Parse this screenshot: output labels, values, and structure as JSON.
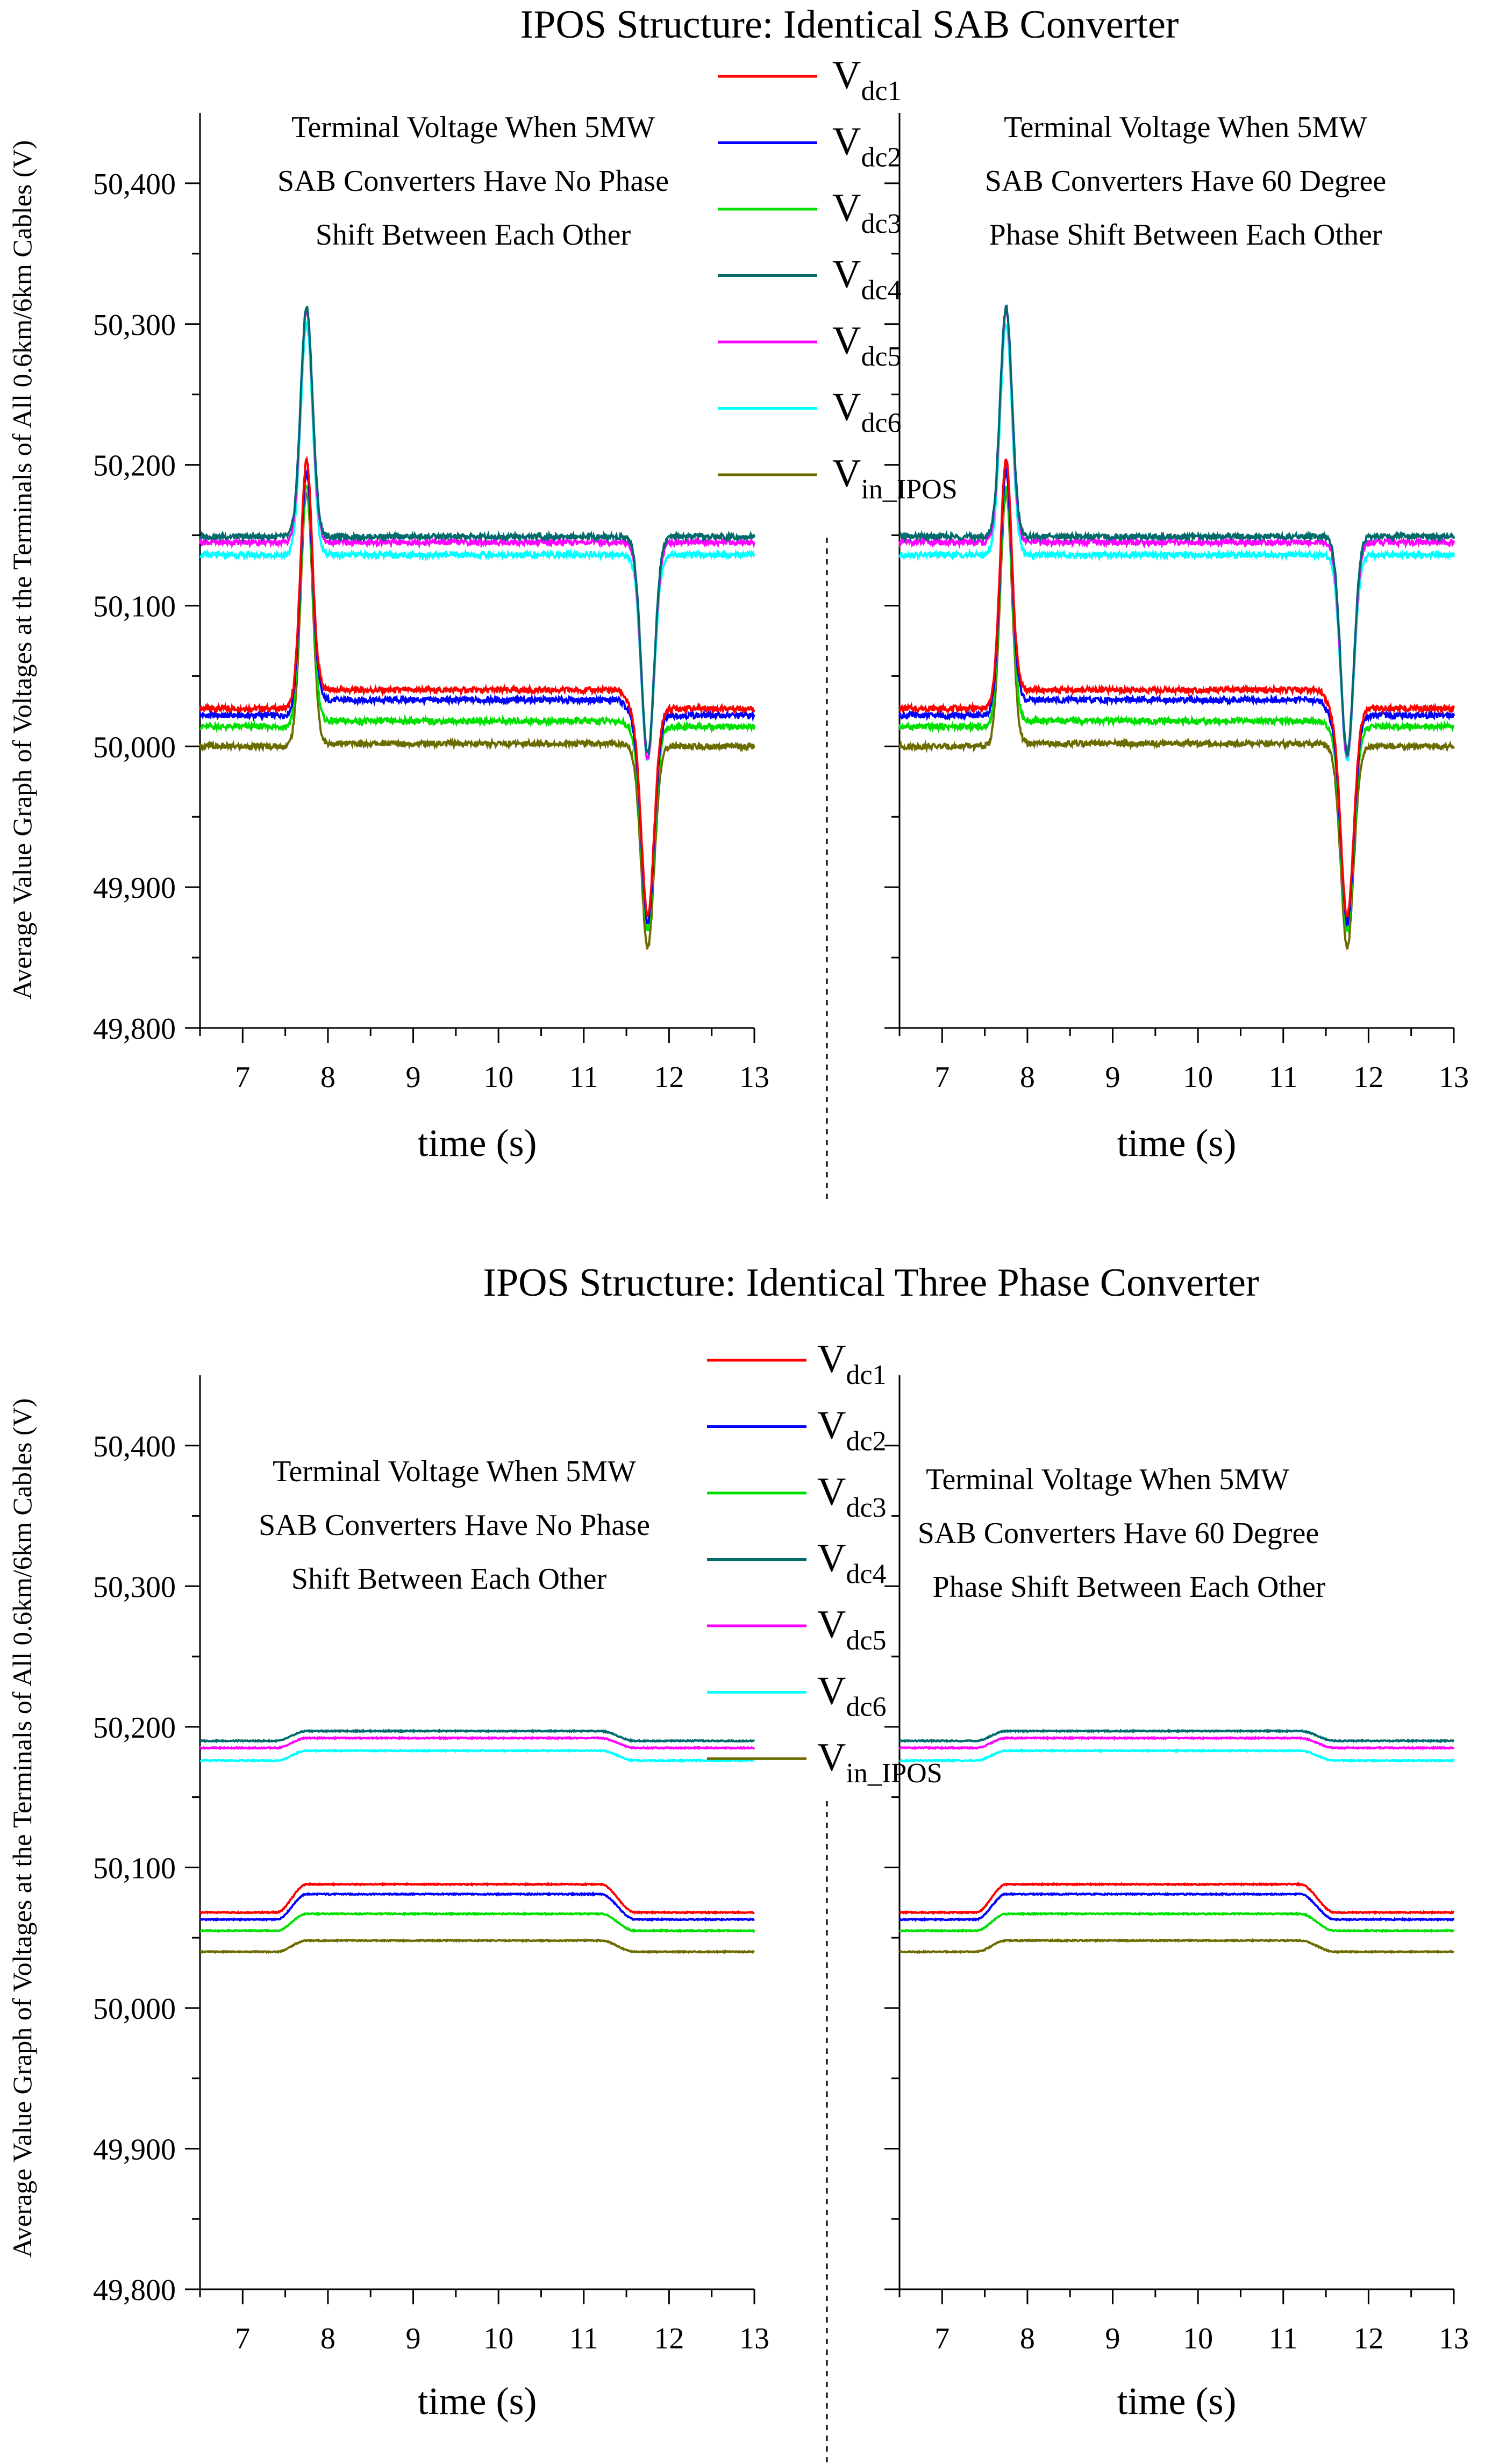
{
  "y_axis_label": "Average Value Graph of Voltages at the Terminals of All 0.6km/6km Cables (V)",
  "legend": [
    {
      "main": "V",
      "sub": "dc1",
      "color": "#ff0000"
    },
    {
      "main": "V",
      "sub": "dc2",
      "color": "#0000ff"
    },
    {
      "main": "V",
      "sub": "dc3",
      "color": "#00e000"
    },
    {
      "main": "V",
      "sub": "dc4",
      "color": "#006b6b"
    },
    {
      "main": "V",
      "sub": "dc5",
      "color": "#ff00ff"
    },
    {
      "main": "V",
      "sub": "dc6",
      "color": "#00ffff"
    },
    {
      "main": "V",
      "sub": "in_IPOS",
      "color": "#6b6b00"
    }
  ],
  "chart_data": [
    {
      "type": "line",
      "title": "IPOS Structure: Identical SAB Converter",
      "subtitle_left": [
        "Terminal Voltage When 5MW",
        "SAB Converters Have No Phase",
        "Shift Between Each Other"
      ],
      "subtitle_right": [
        "Terminal Voltage When 5MW",
        "SAB Converters Have 60 Degree",
        "Phase Shift Between Each Other"
      ],
      "xlabel": "time (s)",
      "ylabel": "Average Value Graph of Voltages at the Terminals of All 0.6km/6km Cables (V)",
      "xlim": [
        6.5,
        13
      ],
      "ylim": [
        49800,
        50450
      ],
      "xticks": [
        7,
        8,
        9,
        10,
        11,
        12,
        13
      ],
      "yticks": [
        49800,
        49900,
        50000,
        50100,
        50200,
        50300,
        50400
      ],
      "ytick_labels": [
        "49,800",
        "49,900",
        "50,000",
        "50,100",
        "50,200",
        "50,300",
        "50,400"
      ],
      "series": [
        {
          "name": "Vdc1",
          "baseline": 50027,
          "mid": 50040,
          "peak": 50203,
          "dip": 49880
        },
        {
          "name": "Vdc2",
          "baseline": 50022,
          "mid": 50033,
          "peak": 50195,
          "dip": 49875
        },
        {
          "name": "Vdc3",
          "baseline": 50014,
          "mid": 50018,
          "peak": 50185,
          "dip": 49870
        },
        {
          "name": "Vdc4",
          "baseline": 50149,
          "mid": 50149,
          "peak": 50312,
          "dip": 49995
        },
        {
          "name": "Vdc5",
          "baseline": 50145,
          "mid": 50145,
          "peak": 50310,
          "dip": 49992
        },
        {
          "name": "Vdc6",
          "baseline": 50136,
          "mid": 50136,
          "peak": 50300,
          "dip": 49990
        },
        {
          "name": "Vin_IPOS",
          "baseline": 50000,
          "mid": 50002,
          "peak": 50180,
          "dip": 49857
        }
      ],
      "events": {
        "pulse_up_time": 7.75,
        "pulse_down_time": 11.75
      }
    },
    {
      "type": "line",
      "title": "IPOS Structure: Identical Three Phase Converter",
      "subtitle_left": [
        "Terminal Voltage When 5MW",
        "SAB Converters Have No Phase",
        "Shift Between Each Other"
      ],
      "subtitle_right": [
        "Terminal Voltage When 5MW",
        "SAB Converters Have 60 Degree",
        "Phase Shift Between Each Other"
      ],
      "xlabel": "time (s)",
      "ylabel": "Average Value Graph of Voltages at the Terminals of All 0.6km/6km Cables (V)",
      "xlim": [
        6.5,
        13
      ],
      "ylim": [
        49800,
        50450
      ],
      "xticks": [
        7,
        8,
        9,
        10,
        11,
        12,
        13
      ],
      "yticks": [
        49800,
        49900,
        50000,
        50100,
        50200,
        50300,
        50400
      ],
      "ytick_labels": [
        "49,800",
        "49,900",
        "50,000",
        "50,100",
        "50,200",
        "50,300",
        "50,400"
      ],
      "series": [
        {
          "name": "Vdc1",
          "baseline": 50068,
          "mid": 50088
        },
        {
          "name": "Vdc2",
          "baseline": 50063,
          "mid": 50081
        },
        {
          "name": "Vdc3",
          "baseline": 50055,
          "mid": 50067
        },
        {
          "name": "Vdc4",
          "baseline": 50190,
          "mid": 50197
        },
        {
          "name": "Vdc5",
          "baseline": 50185,
          "mid": 50192
        },
        {
          "name": "Vdc6",
          "baseline": 50176,
          "mid": 50183
        },
        {
          "name": "Vin_IPOS",
          "baseline": 50040,
          "mid": 50048
        }
      ],
      "events": {
        "step_up_start": 7.4,
        "step_up_end": 7.75,
        "step_down_start": 11.2,
        "step_down_end": 11.6
      }
    }
  ]
}
